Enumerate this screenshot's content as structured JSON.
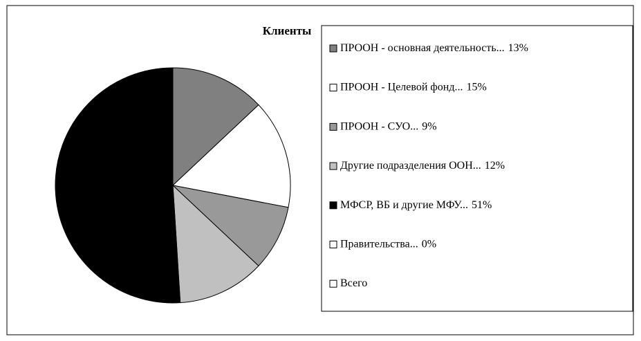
{
  "chart_data": {
    "type": "pie",
    "title": "Клиенты",
    "categories": [
      "ПРООН - основная деятельность...",
      "ПРООН - Целевой фонд...",
      "ПРООН - СУО...",
      "Другие подразделения ООН...",
      "МФСР, ВБ и другие МФУ...",
      "Правительства...",
      "Всего"
    ],
    "values": [
      13,
      15,
      9,
      12,
      51,
      0,
      null
    ],
    "value_labels": [
      "13%",
      "15%",
      "9%",
      "12%",
      "51%",
      "0%",
      null
    ],
    "colors": [
      "#808080",
      "#ffffff",
      "#999999",
      "#c0c0c0",
      "#000000",
      "#ffffff",
      "#ffffff"
    ],
    "legend": "right"
  }
}
